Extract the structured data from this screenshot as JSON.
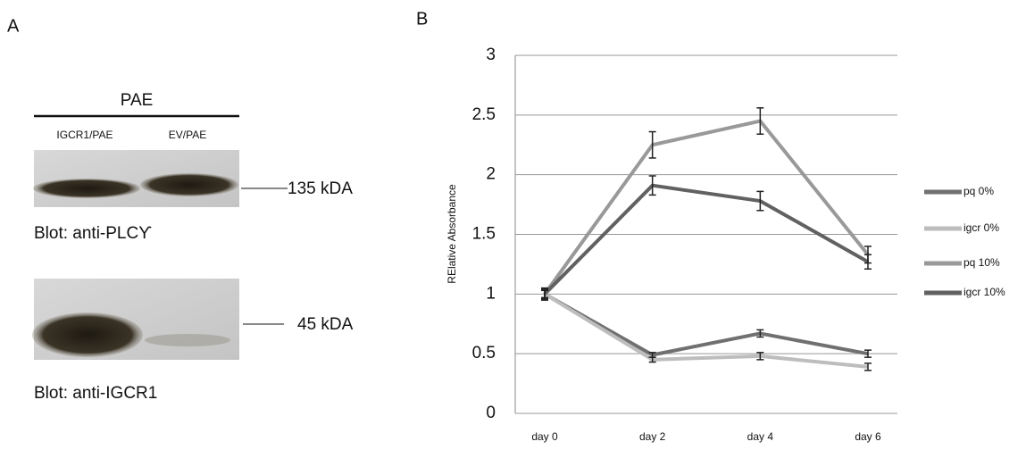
{
  "panel_a": {
    "label": "A",
    "header": "PAE",
    "lanes": [
      "IGCR1/PAE",
      "EV/PAE"
    ],
    "blots": [
      {
        "marker": "135 kDA",
        "caption": "Blot: anti-PLCϒ"
      },
      {
        "marker": "45 kDA",
        "caption": "Blot: anti-IGCR1"
      }
    ]
  },
  "chart_data": {
    "type": "line",
    "panel_label": "B",
    "y_label": "RElative Absorbance",
    "categories": [
      "day 0",
      "day 2",
      "day 4",
      "day 6"
    ],
    "ylim": [
      0,
      3
    ],
    "yticks": [
      0,
      0.5,
      1,
      1.5,
      2,
      2.5,
      3
    ],
    "grid": true,
    "legend": "right",
    "series": [
      {
        "name": "pq 0%",
        "color": "#707070",
        "values": [
          1,
          0.49,
          0.67,
          0.5
        ],
        "errors": [
          0.04,
          0.02,
          0.03,
          0.03
        ]
      },
      {
        "name": "igcr 0%",
        "color": "#bdbdbd",
        "values": [
          1,
          0.45,
          0.48,
          0.39
        ],
        "errors": [
          0.03,
          0.02,
          0.03,
          0.03
        ]
      },
      {
        "name": "pq 10%",
        "color": "#999999",
        "values": [
          1,
          2.25,
          2.45,
          1.33
        ],
        "errors": [
          0.05,
          0.11,
          0.11,
          0.07
        ]
      },
      {
        "name": "igcr 10%",
        "color": "#616161",
        "values": [
          1,
          1.91,
          1.78,
          1.27
        ],
        "errors": [
          0.05,
          0.08,
          0.08,
          0.06
        ]
      }
    ]
  }
}
